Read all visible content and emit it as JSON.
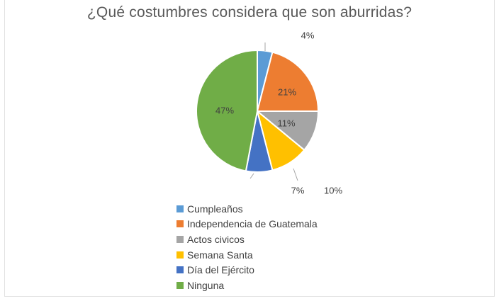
{
  "chart_data": {
    "type": "pie",
    "title": "¿Qué costumbres considera que son aburridas?",
    "slices": [
      {
        "label": "Cumpleaños",
        "value": 4,
        "data_label": "4%",
        "color": "#5B9BD5"
      },
      {
        "label": "Independencia de Guatemala",
        "value": 21,
        "data_label": "21%",
        "color": "#ED7D31"
      },
      {
        "label": "Actos civicos",
        "value": 11,
        "data_label": "11%",
        "color": "#A5A5A5"
      },
      {
        "label": "Semana Santa",
        "value": 10,
        "data_label": "10%",
        "color": "#FFC000"
      },
      {
        "label": "Día del Ejército",
        "value": 7,
        "data_label": "7%",
        "color": "#4472C4"
      },
      {
        "label": "Ninguna",
        "value": 47,
        "data_label": "47%",
        "color": "#70AD47"
      }
    ],
    "legend_position": "bottom"
  }
}
